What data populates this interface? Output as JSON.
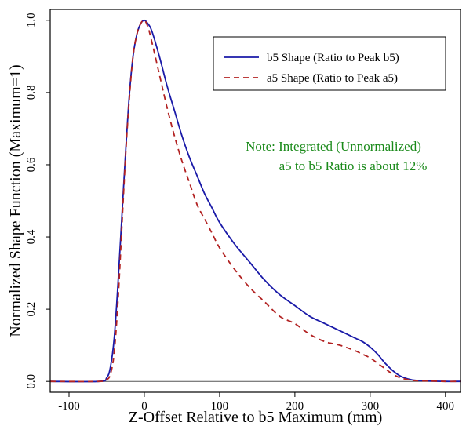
{
  "chart_data": {
    "type": "line",
    "xlabel": "Z-Offset Relative to b5 Maximum (mm)",
    "ylabel": "Normalized Shape Function (Maximum=1)",
    "xlim": [
      -125,
      420
    ],
    "ylim": [
      -0.03,
      1.03
    ],
    "x_ticks": [
      "-100",
      "0",
      "100",
      "200",
      "300",
      "400"
    ],
    "y_ticks": [
      "0.0",
      "0.2",
      "0.4",
      "0.6",
      "0.8",
      "1.0"
    ],
    "legend_position": "top-right",
    "grid": false,
    "series": [
      {
        "name": "b5 Shape (Ratio to Peak b5)",
        "color": "#1a1aa8",
        "dash": "solid",
        "x": [
          -125,
          -60,
          -50,
          -45,
          -40,
          -35,
          -30,
          -25,
          -20,
          -15,
          -10,
          -5,
          0,
          5,
          10,
          20,
          30,
          40,
          50,
          60,
          70,
          80,
          90,
          100,
          120,
          140,
          160,
          180,
          200,
          220,
          240,
          260,
          280,
          290,
          300,
          310,
          320,
          330,
          340,
          350,
          360,
          380,
          400,
          420
        ],
        "y": [
          0,
          0,
          0.01,
          0.04,
          0.12,
          0.27,
          0.45,
          0.63,
          0.79,
          0.9,
          0.96,
          0.99,
          1.0,
          0.99,
          0.97,
          0.9,
          0.82,
          0.75,
          0.68,
          0.62,
          0.57,
          0.52,
          0.48,
          0.44,
          0.38,
          0.33,
          0.28,
          0.24,
          0.21,
          0.18,
          0.16,
          0.14,
          0.12,
          0.11,
          0.095,
          0.075,
          0.05,
          0.03,
          0.015,
          0.007,
          0.003,
          0.001,
          0,
          0
        ]
      },
      {
        "name": "a5 Shape (Ratio to Peak a5)",
        "color": "#b22222",
        "dash": "dashed",
        "x": [
          -125,
          -60,
          -50,
          -45,
          -40,
          -35,
          -30,
          -25,
          -20,
          -15,
          -10,
          -5,
          0,
          5,
          10,
          20,
          30,
          40,
          50,
          60,
          70,
          80,
          90,
          100,
          120,
          140,
          160,
          180,
          200,
          220,
          240,
          260,
          280,
          290,
          300,
          310,
          320,
          330,
          340,
          350,
          360,
          380,
          400,
          420
        ],
        "y": [
          0,
          0,
          0.005,
          0.02,
          0.08,
          0.22,
          0.42,
          0.62,
          0.78,
          0.9,
          0.96,
          0.99,
          1.0,
          0.98,
          0.94,
          0.85,
          0.76,
          0.68,
          0.61,
          0.55,
          0.49,
          0.45,
          0.41,
          0.37,
          0.31,
          0.26,
          0.22,
          0.18,
          0.16,
          0.13,
          0.11,
          0.1,
          0.085,
          0.075,
          0.065,
          0.05,
          0.035,
          0.02,
          0.01,
          0.005,
          0.002,
          0.001,
          0,
          0
        ]
      }
    ],
    "annotation": [
      "Note: Integrated (Unnormalized)",
      "a5 to b5 Ratio is about 12%"
    ],
    "annotation_color": "#1a8a1a"
  }
}
